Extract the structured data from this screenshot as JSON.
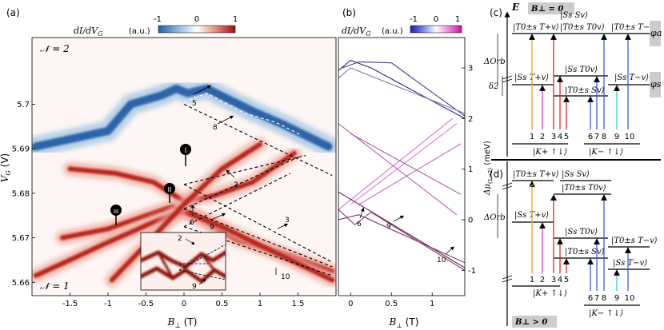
{
  "figure": {
    "panel_a": {
      "label": "(a)",
      "colorbar_title": "dI/dV",
      "colorbar_sub": "G",
      "colorbar_units": "(a.u.)",
      "colorbar_ticks": [
        "-1",
        "0",
        "1"
      ],
      "ylabel": "V",
      "ylabel_sub": "G",
      "ylabel_unit": "(V)",
      "xlabel": "B",
      "xlabel_sub": "⊥",
      "xlabel_unit": "(T)",
      "n_top": "𝒩 = 2",
      "n_bottom": "𝒩 = 1",
      "markers": [
        "I",
        "II",
        "III"
      ],
      "annotations": [
        "5",
        "8",
        "2",
        "9",
        "6",
        "3",
        "10"
      ],
      "inset_annotations": [
        "2",
        "9"
      ]
    },
    "panel_b": {
      "label": "(b)",
      "colorbar_title": "dI/dV",
      "colorbar_sub": "G",
      "colorbar_units": "(a.u.)",
      "colorbar_ticks": [
        "-1",
        "0",
        "1"
      ],
      "ylabel": "Δμ",
      "ylabel_sub": "(1→2)",
      "ylabel_unit": "(meV)",
      "xlabel": "B",
      "xlabel_sub": "⊥",
      "xlabel_unit": "(T)",
      "annotations": [
        "6",
        "9",
        "10"
      ]
    },
    "panel_c": {
      "label": "(c)",
      "energy_axis": "E",
      "field_label": "B⊥ = 0",
      "delta_orb": "ΔOrb",
      "delta_2": "δ2",
      "phi_a": "φa",
      "phi_s": "φs",
      "states": [
        "|T0±s T+v⟩",
        "|Ss Sv⟩",
        "|T0±s T0v⟩",
        "|T0±s T−v⟩",
        "|Ss T+v⟩",
        "|Ss T0v⟩",
        "|T0±s Sv⟩",
        "|Ss T−v⟩"
      ],
      "transition_numbers": [
        "1",
        "2",
        "3",
        "4",
        "5",
        "6",
        "7",
        "8",
        "9",
        "10"
      ],
      "valley_left": "|K+ ↑↓⟩",
      "valley_right": "|K− ↑↓⟩"
    },
    "panel_d": {
      "label": "(d)",
      "field_label": "B⊥ > 0",
      "delta_orb": "ΔOrb",
      "states": [
        "|T0±s T+v⟩",
        "|Ss Sv⟩",
        "|T0±s T0v⟩",
        "|Ss T+v⟩",
        "|Ss T0v⟩",
        "|T0±s Sv⟩",
        "|T0±s T−v⟩",
        "|Ss T−v⟩"
      ],
      "transition_numbers": [
        "1",
        "2",
        "3",
        "4",
        "5",
        "6",
        "7",
        "8",
        "9",
        "10"
      ],
      "valley_left": "|K+ ↑↓⟩",
      "valley_right": "|K− ↑↓⟩"
    }
  },
  "chart_data": [
    {
      "type": "heatmap",
      "title": "dI/dV_G (a.u.)",
      "xlabel": "B⊥ (T)",
      "ylabel": "V_G (V)",
      "xlim": [
        -2.0,
        2.0
      ],
      "ylim": [
        5.657,
        5.715
      ],
      "x_ticks": [
        -1.5,
        -1,
        -0.5,
        0,
        0.5,
        1,
        1.5
      ],
      "x_tick_labels": [
        "-1.5",
        "-1",
        "-0.5",
        "0",
        "0.5",
        "1",
        "1.5"
      ],
      "y_ticks": [
        5.66,
        5.67,
        5.68,
        5.69,
        5.7
      ],
      "y_tick_labels": [
        "5.66",
        "5.67",
        "5.68",
        "5.69",
        "5.7"
      ],
      "colorbar_range": [
        -1,
        1
      ],
      "features": [
        {
          "name": "blue N=2 ridge",
          "sign": -1,
          "points": [
            [
              -1.95,
              5.6905
            ],
            [
              -1.0,
              5.694
            ],
            [
              -0.7,
              5.7
            ],
            [
              -0.3,
              5.702
            ],
            [
              -0.1,
              5.7035
            ],
            [
              0.05,
              5.7025
            ],
            [
              0.3,
              5.7035
            ],
            [
              0.9,
              5.6985
            ],
            [
              1.3,
              5.6955
            ],
            [
              1.9,
              5.6905
            ]
          ]
        },
        {
          "name": "red upper branch",
          "sign": 1,
          "points": [
            [
              -1.5,
              5.6855
            ],
            [
              -0.9,
              5.6845
            ],
            [
              -0.4,
              5.6825
            ],
            [
              0.0,
              5.6782
            ],
            [
              0.4,
              5.6795
            ],
            [
              0.9,
              5.6825
            ],
            [
              1.45,
              5.689
            ]
          ]
        },
        {
          "name": "red middle branch",
          "sign": 1,
          "points": [
            [
              -1.6,
              5.67
            ],
            [
              -1.0,
              5.672
            ],
            [
              -0.5,
              5.675
            ],
            [
              -0.15,
              5.677
            ],
            [
              0.25,
              5.674
            ],
            [
              0.7,
              5.6695
            ],
            [
              1.3,
              5.6665
            ],
            [
              1.95,
              5.6625
            ]
          ]
        },
        {
          "name": "red lower branch",
          "sign": 1,
          "points": [
            [
              -1.95,
              5.6615
            ],
            [
              -1.5,
              5.665
            ],
            [
              -1.0,
              5.669
            ],
            [
              -0.4,
              5.6735
            ],
            [
              0.0,
              5.676
            ],
            [
              0.5,
              5.6725
            ],
            [
              1.1,
              5.6675
            ],
            [
              1.95,
              5.6605
            ]
          ]
        },
        {
          "name": "red steep branch",
          "sign": 1,
          "points": [
            [
              -0.95,
              5.6605
            ],
            [
              -0.5,
              5.6685
            ],
            [
              0.0,
              5.6775
            ],
            [
              0.5,
              5.6855
            ],
            [
              1.0,
              5.691
            ]
          ]
        }
      ],
      "dashed_fits": [
        {
          "points": [
            [
              0.0,
              5.7005
            ],
            [
              0.3,
              5.7025
            ],
            [
              0.8,
              5.698
            ],
            [
              1.2,
              5.696
            ],
            [
              1.55,
              5.693
            ]
          ]
        },
        {
          "points": [
            [
              0.0,
              5.7
            ],
            [
              1.95,
              5.684
            ]
          ]
        },
        {
          "points": [
            [
              0.0,
              5.682
            ],
            [
              1.6,
              5.6885
            ]
          ]
        },
        {
          "points": [
            [
              0.0,
              5.6765
            ],
            [
              1.55,
              5.6885
            ]
          ]
        },
        {
          "points": [
            [
              0.0,
              5.6725
            ],
            [
              1.4,
              5.6845
            ]
          ]
        },
        {
          "points": [
            [
              0.0,
              5.682
            ],
            [
              1.95,
              5.6645
            ]
          ]
        },
        {
          "points": [
            [
              0.0,
              5.6725
            ],
            [
              1.95,
              5.6615
            ]
          ]
        },
        {
          "points": [
            [
              0.0,
              5.6765
            ],
            [
              1.95,
              5.6635
            ]
          ]
        }
      ]
    },
    {
      "type": "line",
      "title": "dI/dV_G (a.u.)",
      "xlabel": "B⊥ (T)",
      "ylabel": "Δμ (1→2) (meV)",
      "xlim": [
        -0.15,
        1.4
      ],
      "ylim": [
        -1.5,
        3.6
      ],
      "x_ticks": [
        0,
        0.5,
        1
      ],
      "x_tick_labels": [
        "0",
        "0.5",
        "1"
      ],
      "y_ticks": [
        -1,
        0,
        1,
        2,
        3
      ],
      "y_tick_labels": [
        "-1",
        "0",
        "1",
        "2",
        "3"
      ],
      "colorbar_range": [
        -1,
        1
      ],
      "series": [
        {
          "name": "upper dark",
          "weight": 0.0,
          "x": [
            -0.15,
            0.0,
            0.25,
            1.4
          ],
          "y": [
            2.95,
            3.15,
            3.0,
            2.0
          ]
        },
        {
          "name": "upper dark b",
          "weight": 0.1,
          "x": [
            -0.1,
            0.1,
            0.5,
            1.4
          ],
          "y": [
            3.0,
            3.12,
            3.1,
            2.05
          ]
        },
        {
          "name": "upper light",
          "weight": 0.35,
          "x": [
            -0.15,
            0.0,
            1.4
          ],
          "y": [
            2.8,
            3.0,
            2.1
          ]
        },
        {
          "name": "rising 1",
          "weight": 0.5,
          "x": [
            0.0,
            1.3
          ],
          "y": [
            0.3,
            1.9
          ]
        },
        {
          "name": "rising 2",
          "weight": 0.55,
          "x": [
            -0.15,
            1.25
          ],
          "y": [
            0.2,
            2.0
          ]
        },
        {
          "name": "rising 3",
          "weight": 0.6,
          "x": [
            0.1,
            1.35
          ],
          "y": [
            0.3,
            1.5
          ]
        },
        {
          "name": "falling 1",
          "weight": 0.65,
          "x": [
            -0.15,
            1.3
          ],
          "y": [
            1.9,
            0.1
          ]
        },
        {
          "name": "falling 2",
          "weight": 0.7,
          "x": [
            0.0,
            1.35
          ],
          "y": [
            1.7,
            0.5
          ]
        },
        {
          "name": "lower 6",
          "weight": 0.85,
          "x": [
            -0.15,
            0.05,
            0.25,
            1.4
          ],
          "y": [
            0.2,
            -0.1,
            0.15,
            -1.0
          ]
        },
        {
          "name": "lower 9",
          "weight": 0.9,
          "x": [
            -0.15,
            0.1,
            1.4
          ],
          "y": [
            0.0,
            0.1,
            -0.85
          ]
        },
        {
          "name": "lower 10",
          "weight": 0.95,
          "x": [
            -0.15,
            1.4
          ],
          "y": [
            0.55,
            -0.95
          ]
        }
      ]
    }
  ]
}
